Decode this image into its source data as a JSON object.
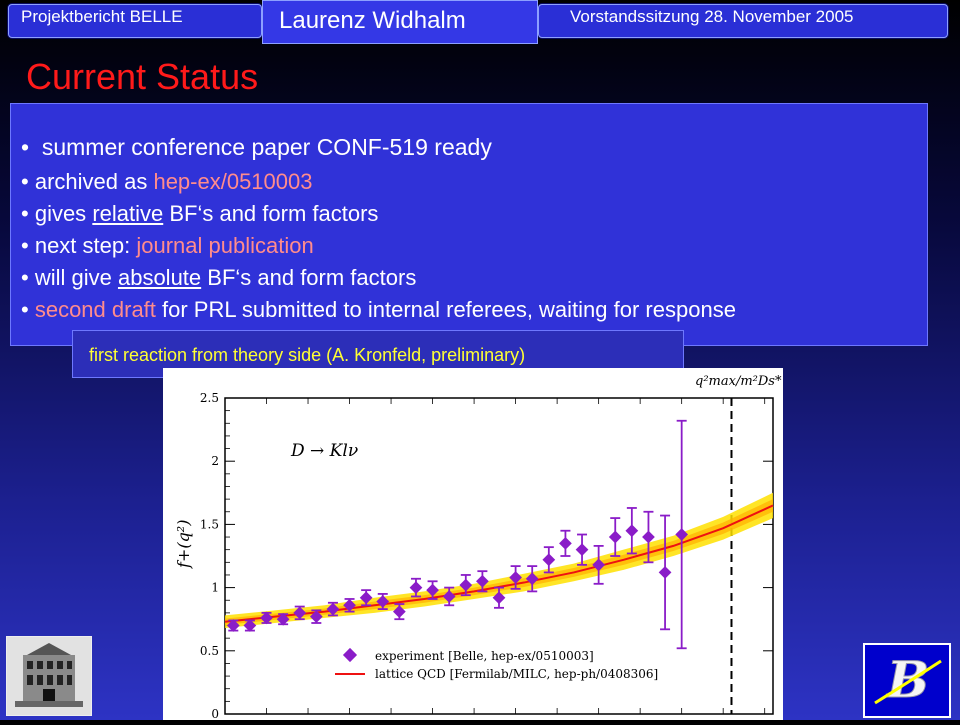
{
  "header": {
    "left": "Projektbericht BELLE",
    "center": "Laurenz Widhalm",
    "right": "Vorstandssitzung 28. November 2005"
  },
  "title": "Current Status",
  "bullets": {
    "b1": "summer conference paper CONF-519 ready",
    "b2_pre": "archived as ",
    "b2_hl": "hep-ex/0510003",
    "b3_pre": "gives ",
    "b3_ul": "relative",
    "b3_post": " BF‘s and form factors",
    "b4_pre": "next step: ",
    "b4_hl": "journal publication",
    "b5_pre": "will give ",
    "b5_ul": "absolute",
    "b5_post": " BF‘s and form factors",
    "b6_hl": "second draft",
    "b6_post": " for PRL submitted to internal referees, waiting for response"
  },
  "note": "first reaction from theory side (A. Kronfeld, preliminary)",
  "chart_data": {
    "type": "scatter",
    "annotation_process": "D → Klν",
    "annotation_top": "q²max/m²Ds*",
    "ylabel": "f+(q²)",
    "ylim": [
      0,
      2.5
    ],
    "yticks": [
      "0",
      "0.5",
      "1",
      "1.5",
      "2",
      "2.5"
    ],
    "legend": [
      "experiment [Belle, hep-ex/0510003]",
      "lattice QCD [Fermilab/MILC, hep-ph/0408306]"
    ],
    "legend_position": "bottom-right",
    "colors": {
      "experiment": "#8a1cc8",
      "lattice": "#ee1111",
      "band": "#ffe000"
    },
    "experiment": {
      "x": [
        0.05,
        0.15,
        0.25,
        0.35,
        0.45,
        0.55,
        0.65,
        0.75,
        0.85,
        0.95,
        1.05,
        1.15,
        1.25,
        1.35,
        1.45,
        1.55,
        1.65,
        1.75,
        1.85,
        1.95,
        2.05,
        2.15,
        2.25,
        2.35,
        2.45,
        2.55,
        2.65,
        2.75
      ],
      "y": [
        0.7,
        0.7,
        0.76,
        0.75,
        0.8,
        0.77,
        0.83,
        0.86,
        0.92,
        0.89,
        0.81,
        1.0,
        0.98,
        0.93,
        1.02,
        1.05,
        0.92,
        1.08,
        1.07,
        1.22,
        1.35,
        1.3,
        1.18,
        1.4,
        1.45,
        1.4,
        1.12,
        1.42
      ],
      "err": [
        0.04,
        0.04,
        0.04,
        0.04,
        0.05,
        0.05,
        0.05,
        0.05,
        0.06,
        0.06,
        0.06,
        0.07,
        0.07,
        0.07,
        0.08,
        0.08,
        0.08,
        0.09,
        0.1,
        0.1,
        0.1,
        0.12,
        0.15,
        0.15,
        0.18,
        0.2,
        0.45,
        0.9
      ]
    },
    "lattice": {
      "x": [
        0,
        0.3,
        0.6,
        0.9,
        1.2,
        1.5,
        1.8,
        2.1,
        2.4,
        2.7,
        3.0,
        3.3
      ],
      "y": [
        0.73,
        0.77,
        0.81,
        0.86,
        0.91,
        0.97,
        1.04,
        1.12,
        1.22,
        1.33,
        1.47,
        1.65
      ],
      "band": [
        0.05,
        0.05,
        0.05,
        0.06,
        0.06,
        0.06,
        0.07,
        0.07,
        0.08,
        0.08,
        0.09,
        0.1
      ]
    },
    "x_range": [
      0,
      3.3
    ],
    "qmax_x": 3.05
  }
}
